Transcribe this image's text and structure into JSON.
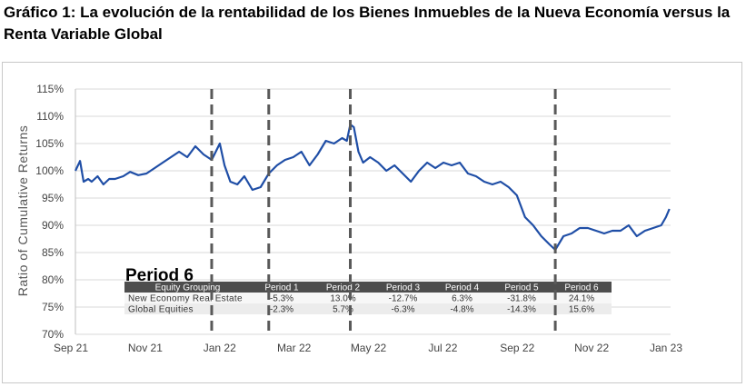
{
  "title": "Gráfico 1: La evolución de la rentabilidad de los Bienes Inmuebles de la Nueva Economía versus la Renta Variable Global",
  "colors": {
    "line": "#1f4ea6",
    "period_divider": "#595959",
    "table_header_bg": "#4d4d4d",
    "table_row_alt": "#ececec",
    "grid": "#d9d9d9"
  },
  "chart_data": {
    "type": "line",
    "title": "",
    "xlabel": "",
    "ylabel": "Ratio of Cumulative Returns",
    "ylim": [
      70,
      115
    ],
    "y_ticks": [
      "70%",
      "75%",
      "80%",
      "85%",
      "90%",
      "95%",
      "100%",
      "105%",
      "110%",
      "115%"
    ],
    "x_ticks": [
      "Sep 21",
      "Nov 21",
      "Jan 22",
      "Mar 22",
      "May 22",
      "Jul 22",
      "Sep 22",
      "Nov 22",
      "Jan 23"
    ],
    "x_range": [
      "2021-09-01",
      "2023-01-25"
    ],
    "grid": "horizontal",
    "series": [
      {
        "name": "",
        "x": [
          "2021-09-01",
          "2021-09-05",
          "2021-09-08",
          "2021-09-12",
          "2021-09-15",
          "2021-09-20",
          "2021-09-25",
          "2021-09-30",
          "2021-10-05",
          "2021-10-12",
          "2021-10-18",
          "2021-10-25",
          "2021-11-01",
          "2021-11-08",
          "2021-11-15",
          "2021-11-22",
          "2021-11-29",
          "2021-12-06",
          "2021-12-13",
          "2021-12-20",
          "2021-12-27",
          "2022-01-03",
          "2022-01-07",
          "2022-01-12",
          "2022-01-18",
          "2022-01-24",
          "2022-01-31",
          "2022-02-07",
          "2022-02-14",
          "2022-02-21",
          "2022-02-28",
          "2022-03-07",
          "2022-03-14",
          "2022-03-21",
          "2022-03-28",
          "2022-04-04",
          "2022-04-11",
          "2022-04-18",
          "2022-04-22",
          "2022-04-25",
          "2022-04-28",
          "2022-05-02",
          "2022-05-06",
          "2022-05-12",
          "2022-05-19",
          "2022-05-26",
          "2022-06-02",
          "2022-06-09",
          "2022-06-16",
          "2022-06-23",
          "2022-06-30",
          "2022-07-07",
          "2022-07-14",
          "2022-07-21",
          "2022-07-28",
          "2022-08-04",
          "2022-08-11",
          "2022-08-18",
          "2022-08-25",
          "2022-09-01",
          "2022-09-08",
          "2022-09-15",
          "2022-09-22",
          "2022-09-29",
          "2022-10-06",
          "2022-10-13",
          "2022-10-18",
          "2022-10-25",
          "2022-11-01",
          "2022-11-08",
          "2022-11-15",
          "2022-11-22",
          "2022-11-29",
          "2022-12-06",
          "2022-12-13",
          "2022-12-20",
          "2022-12-27",
          "2023-01-03",
          "2023-01-10",
          "2023-01-17",
          "2023-01-21",
          "2023-01-24"
        ],
        "y": [
          100,
          101.8,
          98,
          98.5,
          98,
          99,
          97.5,
          98.5,
          98.5,
          99,
          99.8,
          99.2,
          99.5,
          100.5,
          101.5,
          102.5,
          103.5,
          102.5,
          104.5,
          103,
          102,
          105,
          101,
          98,
          97.5,
          99,
          96.5,
          97,
          99.5,
          101,
          102,
          102.5,
          103.5,
          101,
          103,
          105.5,
          105,
          106,
          105.5,
          108.5,
          108,
          103.5,
          101.5,
          102.5,
          101.5,
          100,
          101,
          99.5,
          98,
          100,
          101.5,
          100.5,
          101.5,
          101,
          101.5,
          99.5,
          99,
          98,
          97.5,
          98,
          97,
          95.5,
          91.5,
          90,
          88,
          86.5,
          85.5,
          88,
          88.5,
          89.5,
          89.5,
          89,
          88.5,
          89,
          89,
          90,
          88,
          89,
          89.5,
          90,
          91.5,
          93
        ]
      }
    ],
    "period_dividers": [
      "2021-12-27",
      "2022-02-14",
      "2022-04-25",
      "2022-10-18"
    ],
    "annotation": "Period 6",
    "table": {
      "columns": [
        "Equity Grouping",
        "Period 1",
        "Period 2",
        "Period 3",
        "Period 4",
        "Period 5",
        "Period 6"
      ],
      "rows": [
        [
          "New Economy Real Estate",
          "-5.3%",
          "13.0%",
          "-12.7%",
          "6.3%",
          "-31.8%",
          "24.1%"
        ],
        [
          "Global Equities",
          "-2.3%",
          "5.7%",
          "-6.3%",
          "-4.8%",
          "-14.3%",
          "15.6%"
        ]
      ]
    }
  }
}
